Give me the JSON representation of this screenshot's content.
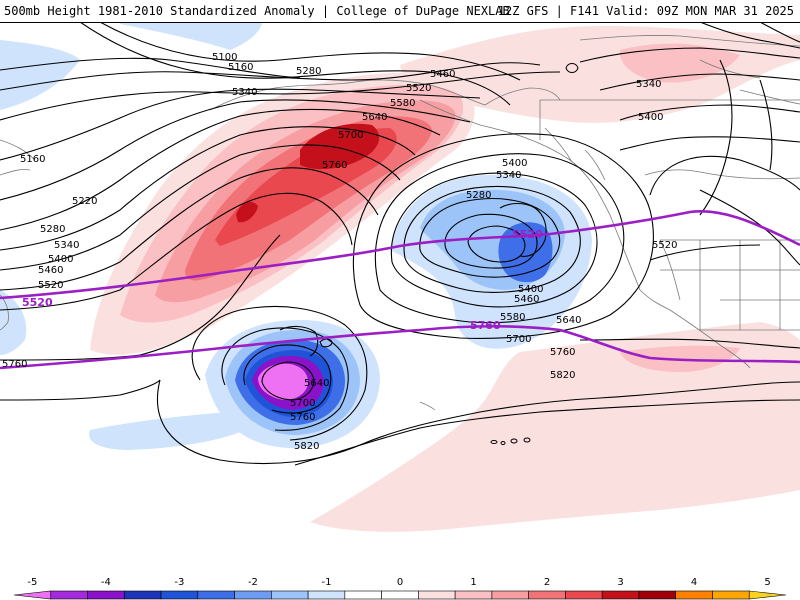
{
  "header": {
    "title_left": "500mb Height 1981-2010 Standardized Anomaly | College of DuPage NEXLAB",
    "title_right": "12Z GFS | F141 Valid: 09Z MON MAR 31 2025"
  },
  "map": {
    "contour_labels": [
      {
        "id": "h5100",
        "text": "5100"
      },
      {
        "id": "h5160a",
        "text": "5160"
      },
      {
        "id": "h5280a",
        "text": "5280"
      },
      {
        "id": "h5340a",
        "text": "5340"
      },
      {
        "id": "h5460a",
        "text": "5460"
      },
      {
        "id": "h5520a",
        "text": "5520"
      },
      {
        "id": "h5580a",
        "text": "5580"
      },
      {
        "id": "h5640a",
        "text": "5640"
      },
      {
        "id": "h5700a",
        "text": "5700"
      },
      {
        "id": "h5760a",
        "text": "5760"
      },
      {
        "id": "h5160b",
        "text": "5160"
      },
      {
        "id": "h5220",
        "text": "5220"
      },
      {
        "id": "h5280b",
        "text": "5280"
      },
      {
        "id": "h5340b",
        "text": "5340"
      },
      {
        "id": "h5400a",
        "text": "5400"
      },
      {
        "id": "h5460b",
        "text": "5460"
      },
      {
        "id": "h5520b",
        "text": "5520"
      },
      {
        "id": "h5760b",
        "text": "5760"
      },
      {
        "id": "h5340c",
        "text": "5340"
      },
      {
        "id": "h5400b",
        "text": "5400"
      },
      {
        "id": "h5400c",
        "text": "5400"
      },
      {
        "id": "h5340d",
        "text": "5340"
      },
      {
        "id": "h5280c",
        "text": "5280"
      },
      {
        "id": "h5400d",
        "text": "5400"
      },
      {
        "id": "h5460c",
        "text": "5460"
      },
      {
        "id": "h5580b",
        "text": "5580"
      },
      {
        "id": "h5640b",
        "text": "5640"
      },
      {
        "id": "h5700b",
        "text": "5700"
      },
      {
        "id": "h5760c",
        "text": "5760"
      },
      {
        "id": "h5820a",
        "text": "5820"
      },
      {
        "id": "h5520c",
        "text": "5520"
      },
      {
        "id": "h5640c",
        "text": "5640"
      },
      {
        "id": "h5700c",
        "text": "5700"
      },
      {
        "id": "h5760d",
        "text": "5760"
      },
      {
        "id": "h5820b",
        "text": "5820"
      }
    ],
    "climo_labels": [
      {
        "id": "c5520w",
        "text": "5520"
      },
      {
        "id": "c5520e",
        "text": "5520"
      },
      {
        "id": "c5760",
        "text": "5760"
      }
    ],
    "colors": {
      "climo_line": "#9b1fc4",
      "contour": "#000000",
      "coast": "#7a7a7a"
    }
  },
  "colorbar": {
    "ticks": [
      "-5",
      "-4",
      "-3",
      "-2",
      "-1",
      "0",
      "1",
      "2",
      "3",
      "4",
      "5"
    ],
    "bins": [
      {
        "value": "-5 to -4.5",
        "color": "#ee71f3"
      },
      {
        "value": "-4.5 to -4",
        "color": "#a52adc"
      },
      {
        "value": "-4 to -3.5",
        "color": "#8a12c8"
      },
      {
        "value": "-3.5 to -3",
        "color": "#1d34b8"
      },
      {
        "value": "-3 to -2.5",
        "color": "#1f54d8"
      },
      {
        "value": "-2.5 to -2",
        "color": "#3f6fe8"
      },
      {
        "value": "-2 to -1.5",
        "color": "#6f9cf3"
      },
      {
        "value": "-1.5 to -1",
        "color": "#9dc4f8"
      },
      {
        "value": "-1 to -0.5",
        "color": "#cfe3fc"
      },
      {
        "value": "-0.5 to 0",
        "color": "#ffffff"
      },
      {
        "value": "0 to 0.5",
        "color": "#ffffff"
      },
      {
        "value": "0.5 to 1",
        "color": "#fbe0e0"
      },
      {
        "value": "1 to 1.5",
        "color": "#fac0c4"
      },
      {
        "value": "1.5 to 2",
        "color": "#f79ea2"
      },
      {
        "value": "2 to 2.5",
        "color": "#f27377"
      },
      {
        "value": "2.5 to 3",
        "color": "#e8484e"
      },
      {
        "value": "3 to 3.5",
        "color": "#c4101a"
      },
      {
        "value": "3.5 to 4",
        "color": "#a0000a"
      },
      {
        "value": "4 to 4.5",
        "color": "#ff7f00"
      },
      {
        "value": "4.5 to 5",
        "color": "#ffa500"
      },
      {
        "value": "5 to 5.5",
        "color": "#ffd21f"
      }
    ]
  }
}
